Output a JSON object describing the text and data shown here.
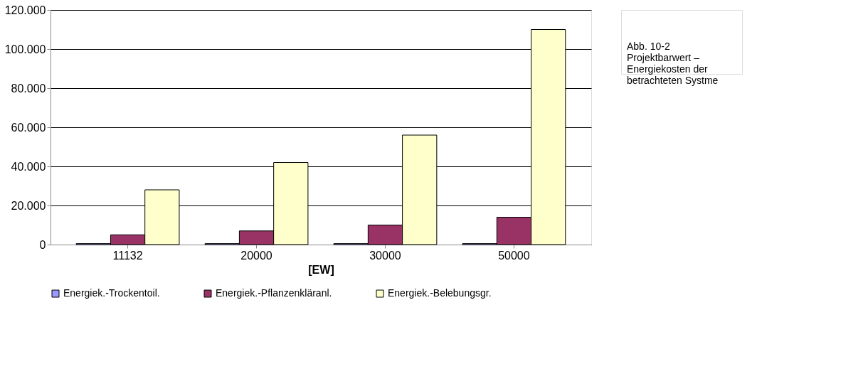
{
  "chart_data": {
    "type": "bar",
    "categories": [
      "11132",
      "20000",
      "30000",
      "50000"
    ],
    "xlabel": "[EW]",
    "ylim": [
      0,
      120000
    ],
    "yticks": [
      {
        "value": 0,
        "label": "0"
      },
      {
        "value": 20000,
        "label": "20.000"
      },
      {
        "value": 40000,
        "label": "40.000"
      },
      {
        "value": 60000,
        "label": "60.000"
      },
      {
        "value": 80000,
        "label": "80.000"
      },
      {
        "value": 100000,
        "label": "100.000"
      },
      {
        "value": 120000,
        "label": "120.000"
      }
    ],
    "series": [
      {
        "name": "Energiek.-Trockentoil.",
        "color": "#9999ff",
        "values": [
          500,
          500,
          500,
          500
        ]
      },
      {
        "name": "Energiek.-Pflanzenkläranl.",
        "color": "#993366",
        "values": [
          5000,
          7000,
          10000,
          14000
        ]
      },
      {
        "name": "Energiek.-Belebungsgr.",
        "color": "#ffffcc",
        "values": [
          28000,
          42000,
          56000,
          110000
        ]
      }
    ],
    "grid": "y",
    "legend": "bottom",
    "annotations": [
      "Abb. 10-2\nProjektbarwert –\nEnergiekosten der\nbetrachteten Systme"
    ]
  }
}
